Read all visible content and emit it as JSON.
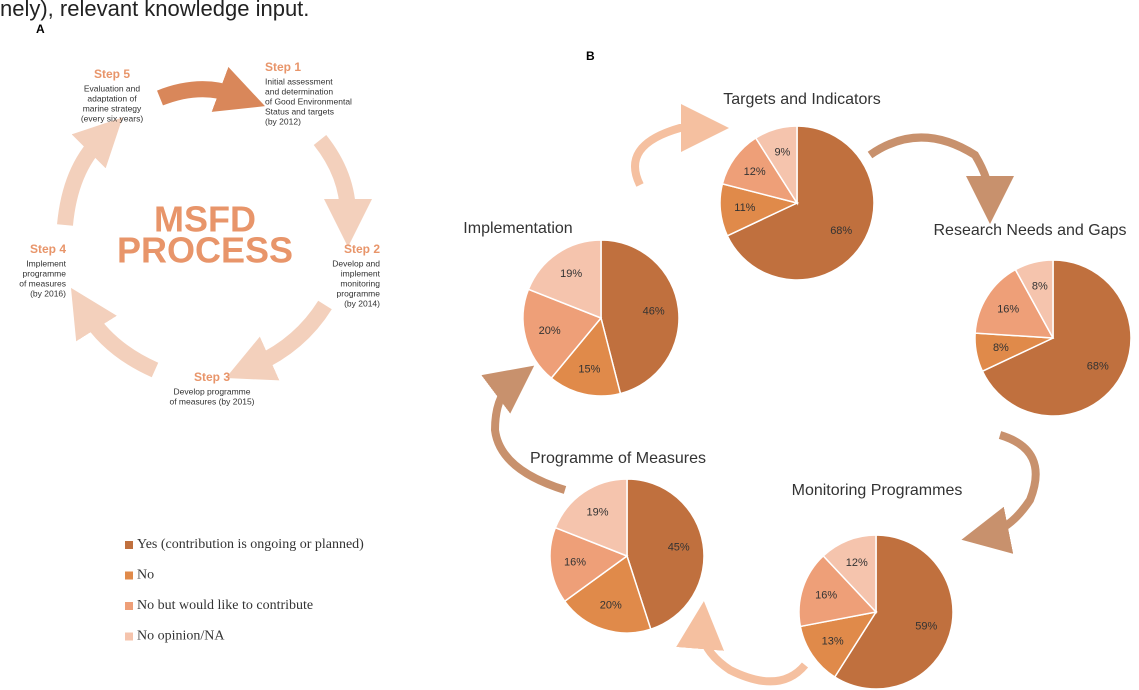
{
  "top_text": "nely), relevant knowledge input.",
  "panel_a": {
    "label": "A",
    "center": [
      "MSFD",
      "PROCESS"
    ],
    "steps": [
      {
        "title": "Step 1",
        "lines": [
          "Initial assessment",
          "and determination",
          "of Good Environmental",
          "Status and targets",
          "(by 2012)"
        ]
      },
      {
        "title": "Step 2",
        "lines": [
          "Develop and",
          "implement",
          "monitoring",
          "programme",
          "(by 2014)"
        ]
      },
      {
        "title": "Step 3",
        "lines": [
          "Develop programme",
          "of measures (by 2015)"
        ]
      },
      {
        "title": "Step 4",
        "lines": [
          "Implement",
          "programme",
          "of measures",
          "(by 2016)"
        ]
      },
      {
        "title": "Step 5",
        "lines": [
          "Evaluation and",
          "adaptation of",
          "marine strategy",
          "(every six years)"
        ]
      }
    ]
  },
  "panel_b_label": "B",
  "legend": {
    "labels": [
      "Yes (contribution is ongoing or planned)",
      "No",
      "No but would like to contribute",
      "No opinion/NA"
    ],
    "colors": [
      "#c0703e",
      "#e08a4a",
      "#ee9f78",
      "#f5c4ad"
    ]
  },
  "chart_data": [
    {
      "type": "pie",
      "title": "Targets and Indicators",
      "values": [
        68,
        11,
        12,
        9
      ],
      "value_labels": [
        "68%",
        "11%",
        "12%",
        "9%"
      ]
    },
    {
      "type": "pie",
      "title": "Research Needs and Gaps",
      "values": [
        68,
        8,
        16,
        8
      ],
      "value_labels": [
        "68%",
        "8%",
        "16%",
        "8%"
      ]
    },
    {
      "type": "pie",
      "title": "Monitoring Programmes",
      "values": [
        59,
        13,
        16,
        12
      ],
      "value_labels": [
        "59%",
        "13%",
        "16%",
        "12%"
      ]
    },
    {
      "type": "pie",
      "title": "Programme of Measures",
      "values": [
        45,
        20,
        16,
        19
      ],
      "value_labels": [
        "45%",
        "20%",
        "16%",
        "19%"
      ]
    },
    {
      "type": "pie",
      "title": "Implementation",
      "values": [
        46,
        15,
        20,
        19
      ],
      "value_labels": [
        "46%",
        "15%",
        "20%",
        "19%"
      ]
    }
  ]
}
